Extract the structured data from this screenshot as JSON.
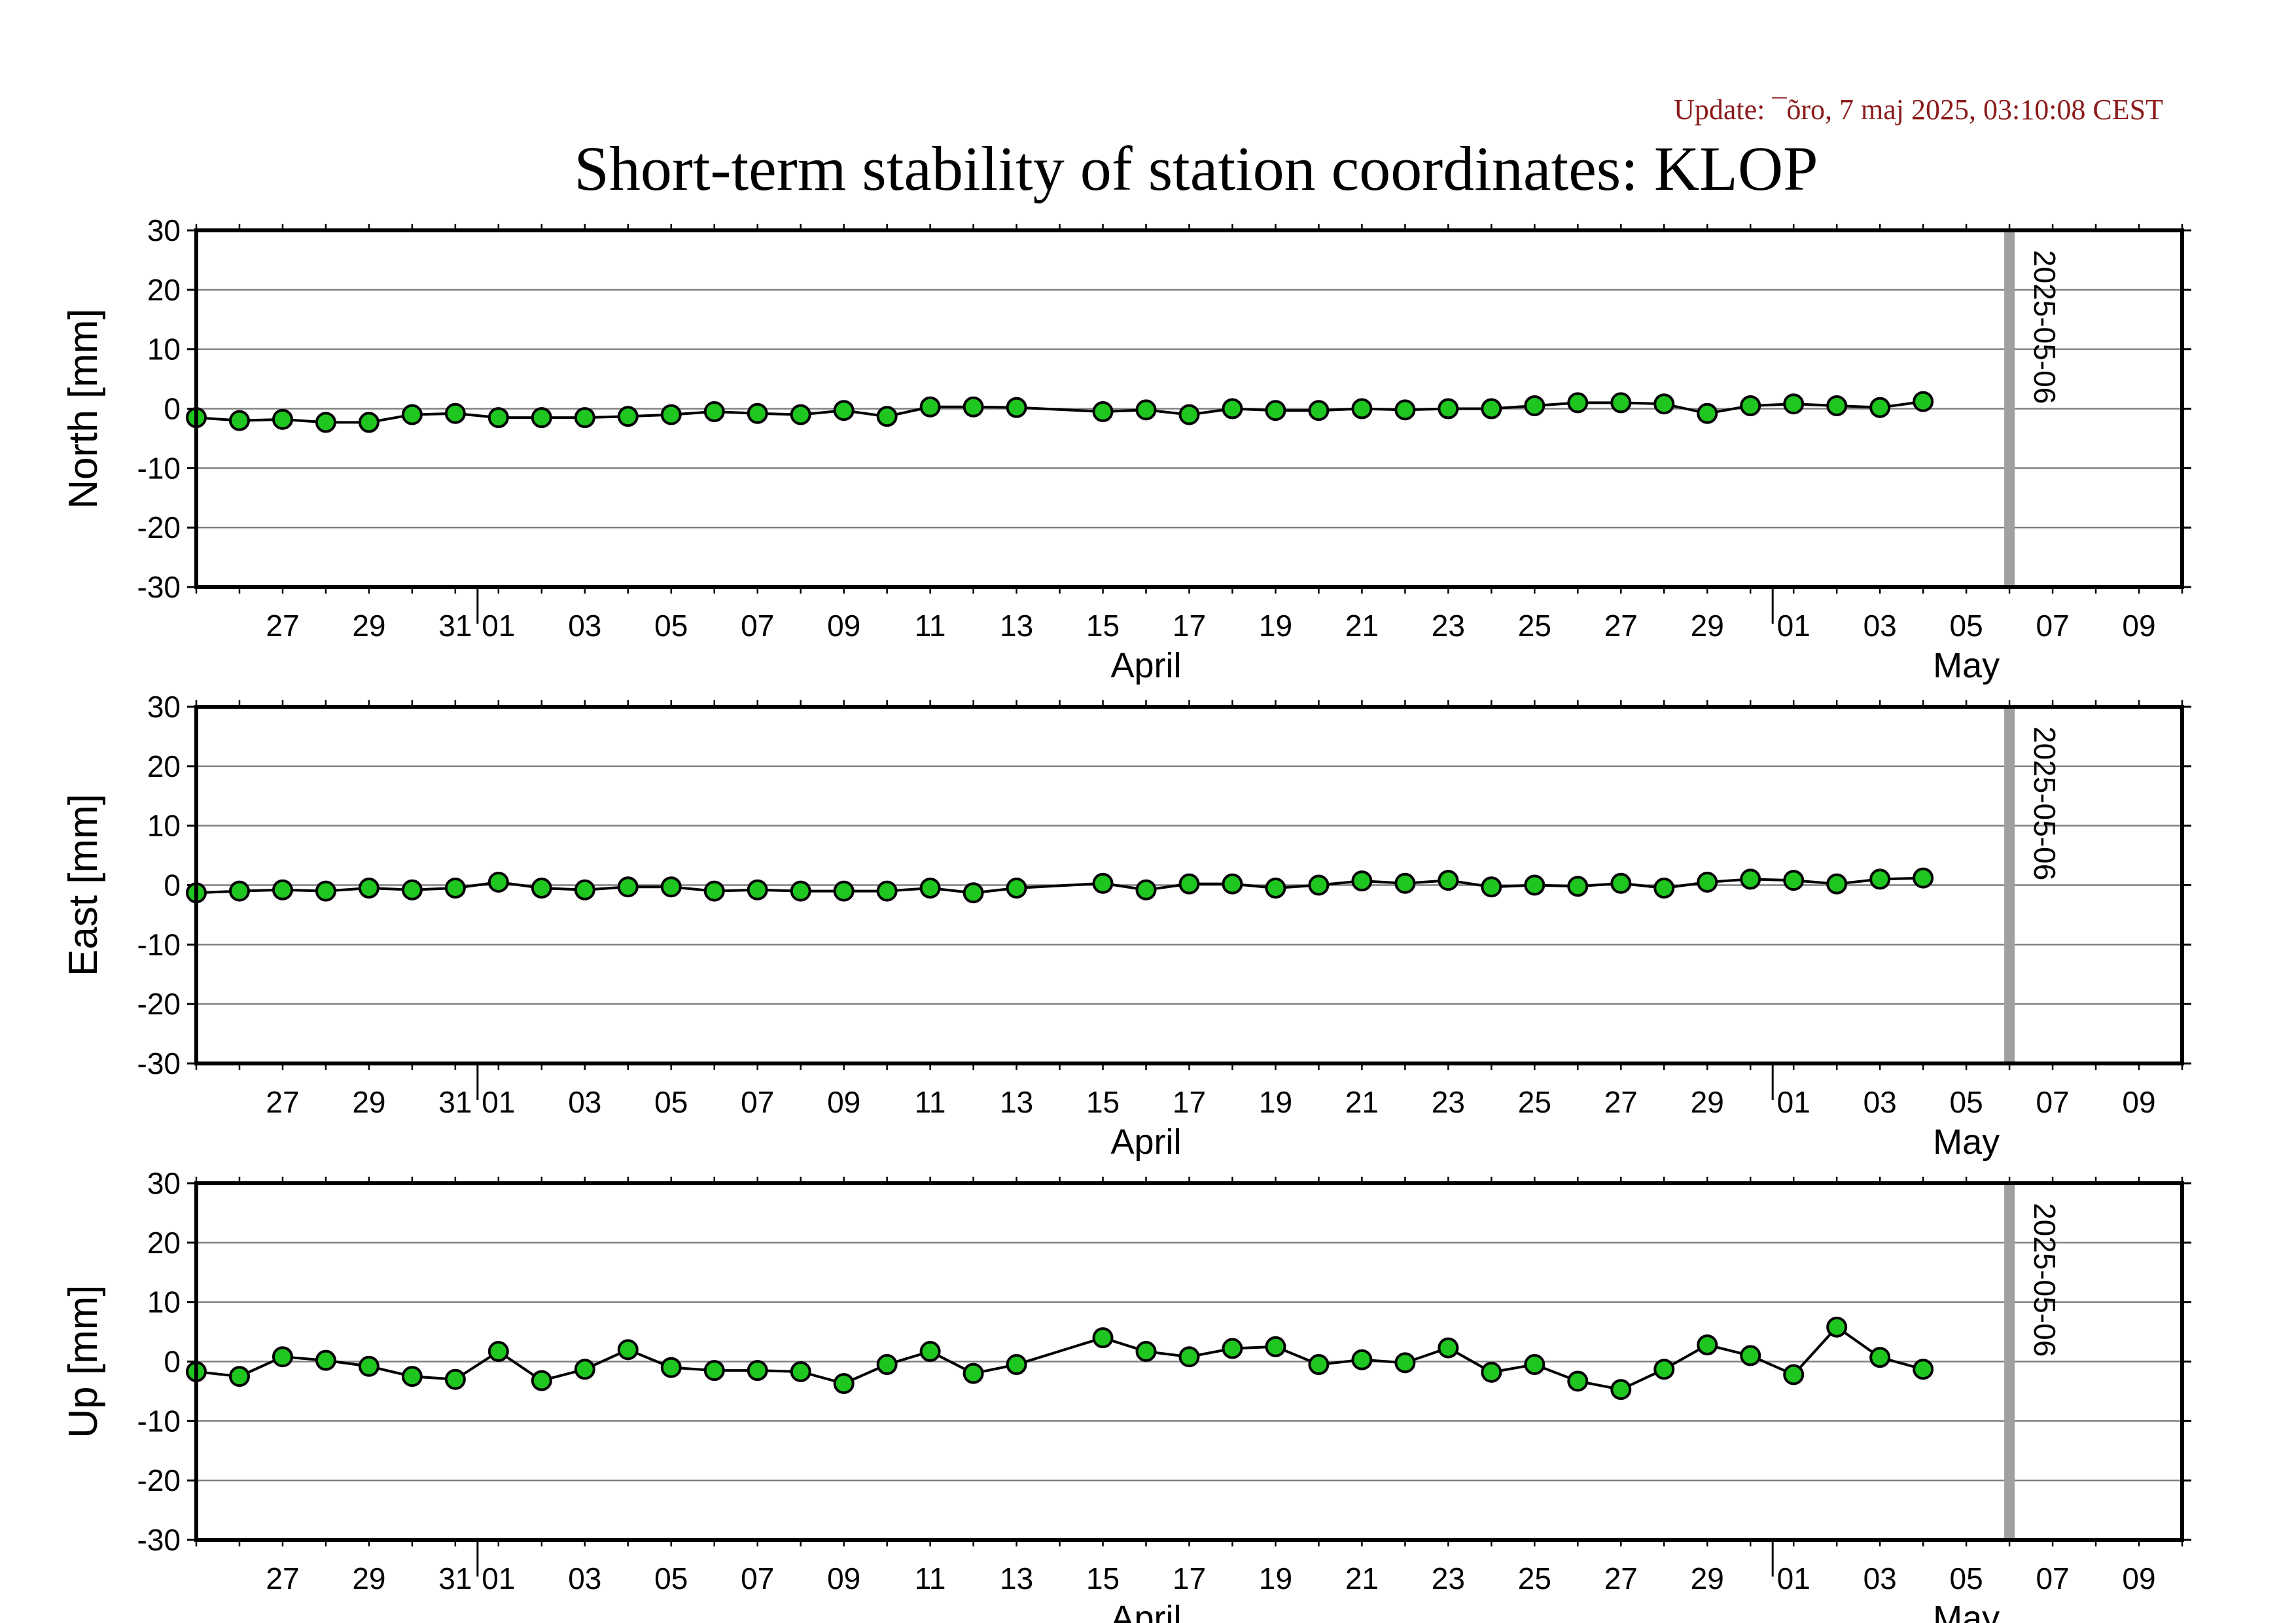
{
  "update_text": "Update: ¯õro, 7 maj 2025, 03:10:08 CEST",
  "title": "Short-term stability of station coordinates: KLOP",
  "colors": {
    "marker_fill": "#1fc61f",
    "marker_stroke": "#000000",
    "line": "#000000",
    "grid": "#808080",
    "marker_line": "#a0a0a0",
    "update_text": "#8b1a1a"
  },
  "chart_data": [
    {
      "type": "line",
      "ylabel": "North [mm]",
      "ylim": [
        -30,
        30
      ],
      "yticks": [
        -30,
        -20,
        -10,
        0,
        10,
        20,
        30
      ],
      "xlim": [
        "2025-03-25",
        "2025-05-10"
      ],
      "x_tick_labels": [
        "27",
        "29",
        "31",
        "01",
        "03",
        "05",
        "07",
        "09",
        "11",
        "13",
        "15",
        "17",
        "19",
        "21",
        "23",
        "25",
        "27",
        "29",
        "01",
        "03",
        "05",
        "07",
        "09"
      ],
      "x_tick_dates": [
        "2025-03-27",
        "2025-03-29",
        "2025-03-31",
        "2025-04-01",
        "2025-04-03",
        "2025-04-05",
        "2025-04-07",
        "2025-04-09",
        "2025-04-11",
        "2025-04-13",
        "2025-04-15",
        "2025-04-17",
        "2025-04-19",
        "2025-04-21",
        "2025-04-23",
        "2025-04-25",
        "2025-04-27",
        "2025-04-29",
        "2025-05-01",
        "2025-05-03",
        "2025-05-05",
        "2025-05-07",
        "2025-05-09"
      ],
      "month_labels": [
        {
          "label": "April",
          "date": "2025-04-16"
        },
        {
          "label": "May",
          "date": "2025-05-05"
        }
      ],
      "month_boundaries": [
        "2025-04-01",
        "2025-05-01"
      ],
      "grid": "horizontal",
      "marker_line": {
        "date": "2025-05-06",
        "label": "2025-05-06"
      },
      "x": [
        "2025-03-25",
        "2025-03-26",
        "2025-03-27",
        "2025-03-28",
        "2025-03-29",
        "2025-03-30",
        "2025-03-31",
        "2025-04-01",
        "2025-04-02",
        "2025-04-03",
        "2025-04-04",
        "2025-04-05",
        "2025-04-06",
        "2025-04-07",
        "2025-04-08",
        "2025-04-09",
        "2025-04-10",
        "2025-04-11",
        "2025-04-12",
        "2025-04-13",
        "2025-04-15",
        "2025-04-16",
        "2025-04-17",
        "2025-04-18",
        "2025-04-19",
        "2025-04-20",
        "2025-04-21",
        "2025-04-22",
        "2025-04-23",
        "2025-04-24",
        "2025-04-25",
        "2025-04-26",
        "2025-04-27",
        "2025-04-28",
        "2025-04-29",
        "2025-04-30",
        "2025-05-01",
        "2025-05-02",
        "2025-05-03",
        "2025-05-04"
      ],
      "values": [
        -1.5,
        -2.0,
        -1.8,
        -2.3,
        -2.3,
        -1.0,
        -0.8,
        -1.5,
        -1.5,
        -1.5,
        -1.3,
        -1.0,
        -0.5,
        -0.8,
        -1.0,
        -0.3,
        -1.3,
        0.3,
        0.3,
        0.2,
        -0.5,
        -0.2,
        -1.0,
        0.0,
        -0.3,
        -0.3,
        0.0,
        -0.2,
        0.0,
        0.0,
        0.5,
        1.0,
        1.0,
        0.8,
        -0.8,
        0.5,
        0.8,
        0.5,
        0.2,
        1.2
      ]
    },
    {
      "type": "line",
      "ylabel": "East [mm]",
      "ylim": [
        -30,
        30
      ],
      "yticks": [
        -30,
        -20,
        -10,
        0,
        10,
        20,
        30
      ],
      "xlim": [
        "2025-03-25",
        "2025-05-10"
      ],
      "x_tick_labels": [
        "27",
        "29",
        "31",
        "01",
        "03",
        "05",
        "07",
        "09",
        "11",
        "13",
        "15",
        "17",
        "19",
        "21",
        "23",
        "25",
        "27",
        "29",
        "01",
        "03",
        "05",
        "07",
        "09"
      ],
      "x_tick_dates": [
        "2025-03-27",
        "2025-03-29",
        "2025-03-31",
        "2025-04-01",
        "2025-04-03",
        "2025-04-05",
        "2025-04-07",
        "2025-04-09",
        "2025-04-11",
        "2025-04-13",
        "2025-04-15",
        "2025-04-17",
        "2025-04-19",
        "2025-04-21",
        "2025-04-23",
        "2025-04-25",
        "2025-04-27",
        "2025-04-29",
        "2025-05-01",
        "2025-05-03",
        "2025-05-05",
        "2025-05-07",
        "2025-05-09"
      ],
      "month_labels": [
        {
          "label": "April",
          "date": "2025-04-16"
        },
        {
          "label": "May",
          "date": "2025-05-05"
        }
      ],
      "month_boundaries": [
        "2025-04-01",
        "2025-05-01"
      ],
      "grid": "horizontal",
      "marker_line": {
        "date": "2025-05-06",
        "label": "2025-05-06"
      },
      "x": [
        "2025-03-25",
        "2025-03-26",
        "2025-03-27",
        "2025-03-28",
        "2025-03-29",
        "2025-03-30",
        "2025-03-31",
        "2025-04-01",
        "2025-04-02",
        "2025-04-03",
        "2025-04-04",
        "2025-04-05",
        "2025-04-06",
        "2025-04-07",
        "2025-04-08",
        "2025-04-09",
        "2025-04-10",
        "2025-04-11",
        "2025-04-12",
        "2025-04-13",
        "2025-04-15",
        "2025-04-16",
        "2025-04-17",
        "2025-04-18",
        "2025-04-19",
        "2025-04-20",
        "2025-04-21",
        "2025-04-22",
        "2025-04-23",
        "2025-04-24",
        "2025-04-25",
        "2025-04-26",
        "2025-04-27",
        "2025-04-28",
        "2025-04-29",
        "2025-04-30",
        "2025-05-01",
        "2025-05-02",
        "2025-05-03",
        "2025-05-04"
      ],
      "values": [
        -1.3,
        -1.0,
        -0.8,
        -1.0,
        -0.5,
        -0.8,
        -0.5,
        0.5,
        -0.5,
        -0.8,
        -0.3,
        -0.3,
        -1.0,
        -0.8,
        -1.0,
        -1.0,
        -1.0,
        -0.5,
        -1.3,
        -0.5,
        0.3,
        -0.8,
        0.2,
        0.2,
        -0.5,
        0.0,
        0.7,
        0.3,
        0.8,
        -0.3,
        0.0,
        -0.2,
        0.3,
        -0.5,
        0.5,
        1.0,
        0.8,
        0.2,
        1.0,
        1.2
      ]
    },
    {
      "type": "line",
      "ylabel": "Up [mm]",
      "ylim": [
        -30,
        30
      ],
      "yticks": [
        -30,
        -20,
        -10,
        0,
        10,
        20,
        30
      ],
      "xlim": [
        "2025-03-25",
        "2025-05-10"
      ],
      "x_tick_labels": [
        "27",
        "29",
        "31",
        "01",
        "03",
        "05",
        "07",
        "09",
        "11",
        "13",
        "15",
        "17",
        "19",
        "21",
        "23",
        "25",
        "27",
        "29",
        "01",
        "03",
        "05",
        "07",
        "09"
      ],
      "x_tick_dates": [
        "2025-03-27",
        "2025-03-29",
        "2025-03-31",
        "2025-04-01",
        "2025-04-03",
        "2025-04-05",
        "2025-04-07",
        "2025-04-09",
        "2025-04-11",
        "2025-04-13",
        "2025-04-15",
        "2025-04-17",
        "2025-04-19",
        "2025-04-21",
        "2025-04-23",
        "2025-04-25",
        "2025-04-27",
        "2025-04-29",
        "2025-05-01",
        "2025-05-03",
        "2025-05-05",
        "2025-05-07",
        "2025-05-09"
      ],
      "month_labels": [
        {
          "label": "April",
          "date": "2025-04-16"
        },
        {
          "label": "May",
          "date": "2025-05-05"
        }
      ],
      "month_boundaries": [
        "2025-04-01",
        "2025-05-01"
      ],
      "grid": "horizontal",
      "marker_line": {
        "date": "2025-05-06",
        "label": "2025-05-06"
      },
      "x": [
        "2025-03-25",
        "2025-03-26",
        "2025-03-27",
        "2025-03-28",
        "2025-03-29",
        "2025-03-30",
        "2025-03-31",
        "2025-04-01",
        "2025-04-02",
        "2025-04-03",
        "2025-04-04",
        "2025-04-05",
        "2025-04-06",
        "2025-04-07",
        "2025-04-08",
        "2025-04-09",
        "2025-04-10",
        "2025-04-11",
        "2025-04-12",
        "2025-04-13",
        "2025-04-15",
        "2025-04-16",
        "2025-04-17",
        "2025-04-18",
        "2025-04-19",
        "2025-04-20",
        "2025-04-21",
        "2025-04-22",
        "2025-04-23",
        "2025-04-24",
        "2025-04-25",
        "2025-04-26",
        "2025-04-27",
        "2025-04-28",
        "2025-04-29",
        "2025-04-30",
        "2025-05-01",
        "2025-05-02",
        "2025-05-03",
        "2025-05-04"
      ],
      "values": [
        -1.7,
        -2.5,
        0.8,
        0.2,
        -0.8,
        -2.5,
        -3.0,
        1.7,
        -3.2,
        -1.3,
        2.0,
        -1.0,
        -1.5,
        -1.5,
        -1.7,
        -3.7,
        -0.5,
        1.7,
        -2.0,
        -0.5,
        4.0,
        1.7,
        0.8,
        2.2,
        2.5,
        -0.5,
        0.3,
        -0.2,
        2.3,
        -1.8,
        -0.5,
        -3.3,
        -4.7,
        -1.3,
        2.8,
        1.0,
        -2.2,
        5.8,
        0.7,
        -1.3
      ]
    }
  ]
}
